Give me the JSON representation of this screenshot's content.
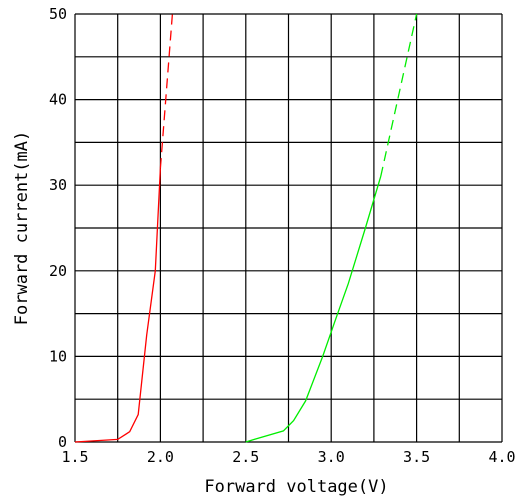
{
  "chart_data": {
    "type": "line",
    "title": "",
    "xlabel": "Forward voltage(V)",
    "ylabel": "Forward current(mA)",
    "xlim": [
      1.5,
      4.0
    ],
    "ylim": [
      0,
      50
    ],
    "x_ticks": [
      "1.5",
      "2.0",
      "2.5",
      "3.0",
      "3.5",
      "4.0"
    ],
    "y_ticks": [
      "0",
      "10",
      "20",
      "30",
      "40",
      "50"
    ],
    "grid": true,
    "legend": "none",
    "series": [
      {
        "color": "#ff0000",
        "solid": [
          [
            1.5,
            0
          ],
          [
            1.75,
            0.3
          ],
          [
            1.82,
            1.2
          ],
          [
            1.87,
            3.2
          ],
          [
            1.92,
            12.5
          ],
          [
            1.97,
            20
          ],
          [
            2.0,
            32
          ]
        ],
        "dashed": [
          [
            2.0,
            32
          ],
          [
            2.07,
            50
          ]
        ]
      },
      {
        "color": "#00ee00",
        "solid": [
          [
            2.5,
            0
          ],
          [
            2.55,
            0.3
          ],
          [
            2.72,
            1.3
          ],
          [
            2.78,
            2.5
          ],
          [
            2.85,
            4.8
          ],
          [
            2.95,
            10
          ],
          [
            3.02,
            14
          ],
          [
            3.1,
            18.5
          ],
          [
            3.2,
            25
          ],
          [
            3.29,
            31
          ]
        ],
        "dashed": [
          [
            3.29,
            31
          ],
          [
            3.5,
            50
          ]
        ]
      }
    ]
  }
}
